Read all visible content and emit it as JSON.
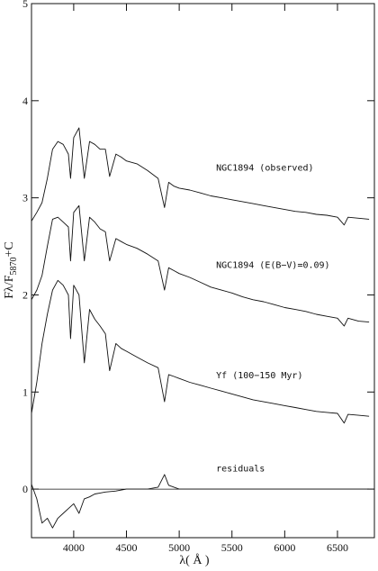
{
  "chart_data": {
    "type": "line",
    "title": "",
    "xlabel": "λ( Å )",
    "ylabel_main": "Fλ/F",
    "ylabel_sub": "5870",
    "ylabel_tail": "+C",
    "xlim": [
      3600,
      6850
    ],
    "ylim": [
      -0.5,
      5
    ],
    "xticks": [
      4000,
      4500,
      5000,
      5500,
      6000,
      6500
    ],
    "yticks": [
      0,
      1,
      2,
      3,
      4,
      5
    ],
    "zero_line": 0,
    "annotations": [
      {
        "text": "NGC1894 (observed)",
        "x": 5350,
        "y": 3.28
      },
      {
        "text": "NGC1894 (E(B−V)=0.09)",
        "x": 5350,
        "y": 2.28
      },
      {
        "text": "Yf (100−150 Myr)",
        "x": 5350,
        "y": 1.14
      },
      {
        "text": "residuals",
        "x": 5350,
        "y": 0.18
      }
    ],
    "series": [
      {
        "x": [
          3600,
          3650,
          3700,
          3750,
          3800,
          3850,
          3900,
          3950,
          3970,
          4000,
          4050,
          4101,
          4150,
          4200,
          4250,
          4300,
          4340,
          4400,
          4450,
          4500,
          4600,
          4700,
          4800,
          4861,
          4900,
          4950,
          5000,
          5100,
          5200,
          5300,
          5400,
          5500,
          5600,
          5700,
          5800,
          5900,
          6000,
          6100,
          6200,
          6300,
          6400,
          6500,
          6563,
          6600,
          6700,
          6800
        ],
        "y": [
          2.76,
          2.85,
          2.95,
          3.2,
          3.5,
          3.58,
          3.55,
          3.45,
          3.2,
          3.62,
          3.72,
          3.2,
          3.58,
          3.55,
          3.5,
          3.5,
          3.22,
          3.45,
          3.42,
          3.38,
          3.35,
          3.28,
          3.2,
          2.9,
          3.16,
          3.12,
          3.1,
          3.08,
          3.05,
          3.02,
          3.0,
          2.98,
          2.96,
          2.94,
          2.92,
          2.9,
          2.88,
          2.86,
          2.85,
          2.83,
          2.82,
          2.8,
          2.72,
          2.8,
          2.79,
          2.78
        ]
      },
      {
        "x": [
          3600,
          3650,
          3700,
          3750,
          3800,
          3850,
          3900,
          3950,
          3970,
          4000,
          4050,
          4101,
          4150,
          4200,
          4250,
          4300,
          4340,
          4400,
          4450,
          4500,
          4600,
          4700,
          4800,
          4861,
          4900,
          4950,
          5000,
          5100,
          5200,
          5300,
          5400,
          5500,
          5600,
          5700,
          5800,
          5900,
          6000,
          6100,
          6200,
          6300,
          6400,
          6500,
          6563,
          6600,
          6700,
          6800
        ],
        "y": [
          1.95,
          2.05,
          2.2,
          2.5,
          2.78,
          2.8,
          2.75,
          2.7,
          2.35,
          2.85,
          2.92,
          2.35,
          2.8,
          2.75,
          2.68,
          2.65,
          2.35,
          2.58,
          2.55,
          2.52,
          2.48,
          2.42,
          2.35,
          2.05,
          2.28,
          2.25,
          2.22,
          2.18,
          2.13,
          2.08,
          2.05,
          2.02,
          1.98,
          1.95,
          1.93,
          1.9,
          1.87,
          1.85,
          1.83,
          1.8,
          1.78,
          1.76,
          1.68,
          1.76,
          1.73,
          1.72
        ]
      },
      {
        "x": [
          3600,
          3650,
          3700,
          3750,
          3800,
          3850,
          3900,
          3950,
          3970,
          4000,
          4050,
          4101,
          4150,
          4200,
          4250,
          4300,
          4340,
          4400,
          4450,
          4500,
          4600,
          4700,
          4800,
          4861,
          4900,
          4950,
          5000,
          5100,
          5200,
          5300,
          5400,
          5500,
          5600,
          5700,
          5800,
          5900,
          6000,
          6100,
          6200,
          6300,
          6400,
          6500,
          6563,
          6600,
          6700,
          6800
        ],
        "y": [
          0.78,
          1.1,
          1.5,
          1.8,
          2.05,
          2.15,
          2.1,
          2.0,
          1.55,
          2.1,
          2.0,
          1.3,
          1.85,
          1.75,
          1.68,
          1.6,
          1.22,
          1.5,
          1.45,
          1.42,
          1.36,
          1.3,
          1.25,
          0.9,
          1.18,
          1.16,
          1.14,
          1.1,
          1.07,
          1.04,
          1.01,
          0.98,
          0.95,
          0.92,
          0.9,
          0.88,
          0.86,
          0.84,
          0.82,
          0.8,
          0.79,
          0.78,
          0.68,
          0.77,
          0.76,
          0.75
        ]
      },
      {
        "x": [
          3600,
          3650,
          3700,
          3750,
          3800,
          3850,
          3900,
          3950,
          4000,
          4050,
          4100,
          4150,
          4200,
          4250,
          4300,
          4400,
          4500,
          4600,
          4700,
          4800,
          4861,
          4900,
          5000,
          5200,
          5400,
          5600,
          5800,
          6000,
          6200,
          6400,
          6600,
          6800
        ],
        "y": [
          0.05,
          -0.1,
          -0.35,
          -0.3,
          -0.4,
          -0.3,
          -0.25,
          -0.2,
          -0.15,
          -0.25,
          -0.1,
          -0.08,
          -0.05,
          -0.04,
          -0.03,
          -0.02,
          0.0,
          0.0,
          0.0,
          0.02,
          0.15,
          0.04,
          0.0,
          0.0,
          0.0,
          0.0,
          0.0,
          0.0,
          0.0,
          0.0,
          0.0,
          0.0
        ]
      }
    ]
  }
}
